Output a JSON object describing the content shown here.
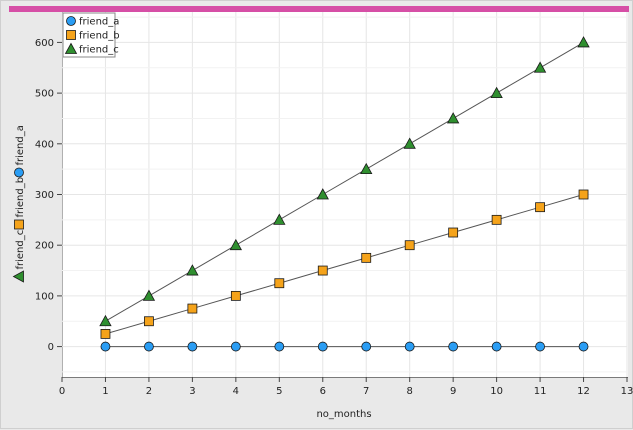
{
  "chart_data": {
    "type": "line",
    "title": "",
    "xlabel": "no_months",
    "ylabel_series": [
      "friend_c",
      "friend_b",
      "friend_a"
    ],
    "xlim": [
      0,
      13
    ],
    "ylim": [
      -60,
      660
    ],
    "x_ticks": [
      0,
      1,
      2,
      3,
      4,
      5,
      6,
      7,
      8,
      9,
      10,
      11,
      12,
      13
    ],
    "y_ticks": [
      0,
      100,
      200,
      300,
      400,
      500,
      600
    ],
    "grid": true,
    "legend_position": "top-left",
    "x": [
      1,
      2,
      3,
      4,
      5,
      6,
      7,
      8,
      9,
      10,
      11,
      12
    ],
    "series": [
      {
        "name": "friend_a",
        "marker": "circle",
        "color": "#2a9df4",
        "values": [
          0,
          0,
          0,
          0,
          0,
          0,
          0,
          0,
          0,
          0,
          0,
          0
        ]
      },
      {
        "name": "friend_b",
        "marker": "square",
        "color": "#f5a31a",
        "values": [
          25,
          50,
          75,
          100,
          125,
          150,
          175,
          200,
          225,
          250,
          275,
          300
        ]
      },
      {
        "name": "friend_c",
        "marker": "triangle",
        "color": "#2f8f2f",
        "values": [
          50,
          100,
          150,
          200,
          250,
          300,
          350,
          400,
          450,
          500,
          550,
          600
        ]
      }
    ]
  }
}
